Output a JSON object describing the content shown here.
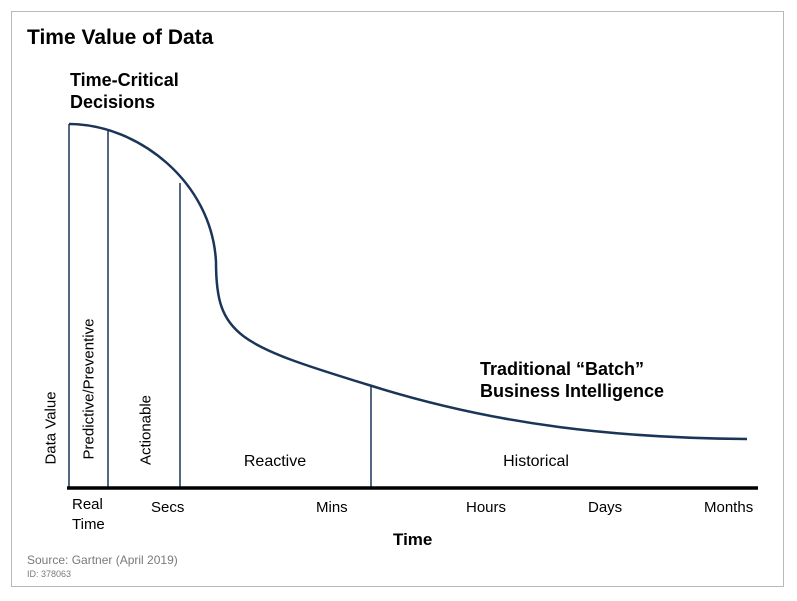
{
  "title": "Time Value of Data",
  "annotations": {
    "top": [
      "Time-Critical",
      "Decisions"
    ],
    "bottom": [
      "Traditional “Batch”",
      "Business Intelligence"
    ]
  },
  "y_axis_label": "Data Value",
  "x_axis_title": "Time",
  "x_ticks": {
    "real_time": [
      "Real",
      "Time"
    ],
    "secs": "Secs",
    "mins": "Mins",
    "hours": "Hours",
    "days": "Days",
    "months": "Months"
  },
  "zones": {
    "predictive": "Predictive/Preventive",
    "actionable": "Actionable",
    "reactive": "Reactive",
    "historical": "Historical"
  },
  "source": "Source: Gartner (April 2019)",
  "doc_id": "ID: 378063",
  "colors": {
    "curve": "#1b3558",
    "axis": "#000000"
  }
}
